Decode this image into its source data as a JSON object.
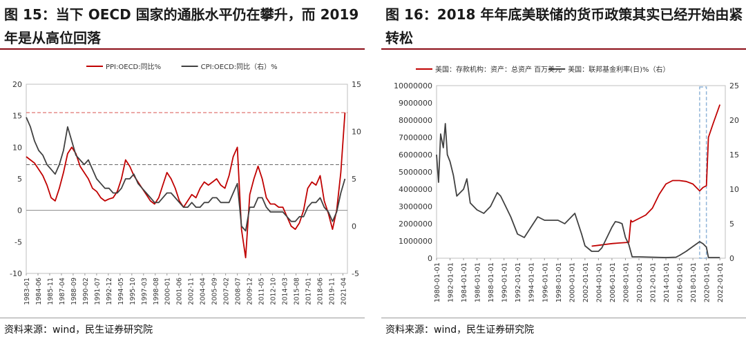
{
  "left": {
    "title": "图 15：当下 OECD 国家的通胀水平仍在攀升，而 2019 年是从高位回落",
    "source": "资料来源：wind，民生证券研究院",
    "chart_data": {
      "type": "line",
      "legend_position": "top",
      "x_ticks": [
        "1983-01",
        "1984-06",
        "1985-11",
        "1987-04",
        "1988-09",
        "1990-02",
        "1991-07",
        "1992-12",
        "1994-05",
        "1995-10",
        "1997-03",
        "1998-08",
        "2000-01",
        "2001-06",
        "2002-11",
        "2004-04",
        "2005-09",
        "2007-02",
        "2008-07",
        "2009-12",
        "2011-05",
        "2012-10",
        "2014-03",
        "2015-08",
        "2017-01",
        "2018-06",
        "2019-11",
        "2021-04"
      ],
      "y_left_ticks": [
        "20",
        "15",
        "10",
        "5",
        "0",
        "-5",
        "-10"
      ],
      "y_right_ticks": [
        "15",
        "10",
        "5",
        "0",
        "-5"
      ],
      "ylim_left": [
        -10,
        20
      ],
      "ylim_right": [
        -5,
        15
      ],
      "reference_lines": [
        {
          "axis": "left",
          "value": 15.5,
          "color": "#d9534f"
        },
        {
          "axis": "right",
          "value": 6.5,
          "color": "#666666"
        }
      ],
      "series": [
        {
          "name": "PPI:OECD:同比%",
          "axis": "left",
          "color": "#c00000",
          "x": [
            1983.0,
            1983.5,
            1984.0,
            1984.5,
            1985.0,
            1985.5,
            1986.0,
            1986.5,
            1987.0,
            1987.5,
            1988.0,
            1988.5,
            1989.0,
            1989.5,
            1990.0,
            1990.5,
            1991.0,
            1991.5,
            1992.0,
            1992.5,
            1993.0,
            1993.5,
            1994.0,
            1994.5,
            1995.0,
            1995.5,
            1996.0,
            1996.5,
            1997.0,
            1997.5,
            1998.0,
            1998.5,
            1999.0,
            1999.5,
            2000.0,
            2000.5,
            2001.0,
            2001.5,
            2002.0,
            2002.5,
            2003.0,
            2003.5,
            2004.0,
            2004.5,
            2005.0,
            2005.5,
            2006.0,
            2006.5,
            2007.0,
            2007.5,
            2008.0,
            2008.5,
            2009.0,
            2009.5,
            2010.0,
            2010.5,
            2011.0,
            2011.5,
            2012.0,
            2012.5,
            2013.0,
            2013.5,
            2014.0,
            2014.5,
            2015.0,
            2015.5,
            2016.0,
            2016.5,
            2017.0,
            2017.5,
            2018.0,
            2018.5,
            2019.0,
            2019.5,
            2020.0,
            2020.5,
            2021.0,
            2021.5
          ],
          "y": [
            8.5,
            8.0,
            7.5,
            6.5,
            5.5,
            4.0,
            2.0,
            1.5,
            3.5,
            6.0,
            9.0,
            10.0,
            9.0,
            7.0,
            6.0,
            5.0,
            3.5,
            3.0,
            2.0,
            1.5,
            1.8,
            2.0,
            3.0,
            5.0,
            8.0,
            7.0,
            5.5,
            4.5,
            3.5,
            2.5,
            1.5,
            1.0,
            2.0,
            4.0,
            6.0,
            5.0,
            3.5,
            1.5,
            0.5,
            1.5,
            2.5,
            2.0,
            3.5,
            4.5,
            4.0,
            4.5,
            5.0,
            4.0,
            3.5,
            5.5,
            8.5,
            10.0,
            -3.0,
            -7.5,
            2.5,
            5.0,
            7.0,
            5.0,
            2.0,
            1.0,
            1.0,
            0.5,
            0.5,
            -1.0,
            -2.5,
            -3.0,
            -2.0,
            0.0,
            3.5,
            4.5,
            4.0,
            5.5,
            1.5,
            -0.5,
            -3.0,
            0.0,
            6.0,
            15.5
          ]
        },
        {
          "name": "CPI:OECD:同比（右）%",
          "axis": "right",
          "color": "#404040",
          "x": [
            1983.0,
            1983.5,
            1984.0,
            1984.5,
            1985.0,
            1985.5,
            1986.0,
            1986.5,
            1987.0,
            1987.5,
            1988.0,
            1988.5,
            1989.0,
            1989.5,
            1990.0,
            1990.5,
            1991.0,
            1991.5,
            1992.0,
            1992.5,
            1993.0,
            1993.5,
            1994.0,
            1994.5,
            1995.0,
            1995.5,
            1996.0,
            1996.5,
            1997.0,
            1997.5,
            1998.0,
            1998.5,
            1999.0,
            1999.5,
            2000.0,
            2000.5,
            2001.0,
            2001.5,
            2002.0,
            2002.5,
            2003.0,
            2003.5,
            2004.0,
            2004.5,
            2005.0,
            2005.5,
            2006.0,
            2006.5,
            2007.0,
            2007.5,
            2008.0,
            2008.5,
            2009.0,
            2009.5,
            2010.0,
            2010.5,
            2011.0,
            2011.5,
            2012.0,
            2012.5,
            2013.0,
            2013.5,
            2014.0,
            2014.5,
            2015.0,
            2015.5,
            2016.0,
            2016.5,
            2017.0,
            2017.5,
            2018.0,
            2018.5,
            2019.0,
            2019.5,
            2020.0,
            2020.5,
            2021.0,
            2021.5
          ],
          "y": [
            11.5,
            10.5,
            9.0,
            8.0,
            7.5,
            6.5,
            6.0,
            5.5,
            6.5,
            8.0,
            10.5,
            9.0,
            7.5,
            7.0,
            6.5,
            7.0,
            6.0,
            5.0,
            4.5,
            4.0,
            4.0,
            3.5,
            3.5,
            4.0,
            5.0,
            5.0,
            5.5,
            4.5,
            4.0,
            3.5,
            3.0,
            2.5,
            2.5,
            3.0,
            3.5,
            3.5,
            3.0,
            2.5,
            2.0,
            2.0,
            2.5,
            2.0,
            2.0,
            2.5,
            2.5,
            3.0,
            3.0,
            2.5,
            2.5,
            2.5,
            3.5,
            4.5,
            0.0,
            -0.5,
            2.0,
            2.0,
            3.0,
            3.0,
            2.0,
            1.5,
            1.5,
            1.5,
            1.5,
            1.0,
            0.5,
            0.5,
            1.0,
            1.0,
            2.0,
            2.5,
            2.5,
            3.0,
            2.0,
            1.5,
            0.5,
            1.5,
            3.5,
            5.0
          ]
        }
      ]
    }
  },
  "right": {
    "title": "图 16：2018 年年底美联储的货币政策其实已经开始由紧转松",
    "source": "资料来源：wind，民生证券研究院",
    "chart_data": {
      "type": "line",
      "legend_position": "top",
      "x_ticks": [
        "1980-01-01",
        "1982-01-01",
        "1984-01-01",
        "1986-01-01",
        "1988-01-01",
        "1990-01-01",
        "1992-01-01",
        "1994-01-01",
        "1996-01-01",
        "1998-01-01",
        "2000-01-01",
        "2002-01-01",
        "2004-01-01",
        "2006-01-01",
        "2008-01-01",
        "2010-01-01",
        "2012-01-01",
        "2014-01-01",
        "2016-01-01",
        "2018-01-01",
        "2020-01-01",
        "2022-01-01"
      ],
      "y_left_ticks": [
        "10000000",
        "9000000",
        "8000000",
        "7000000",
        "6000000",
        "5000000",
        "4000000",
        "3000000",
        "2000000",
        "1000000",
        "0"
      ],
      "y_right_ticks": [
        "25",
        "20",
        "15",
        "10",
        "5",
        "0"
      ],
      "ylim_left": [
        0,
        10000000
      ],
      "ylim_right": [
        0,
        25
      ],
      "highlight_box": {
        "from": "2019-01-01",
        "to": "2020-01-01",
        "color": "#8fb4d8"
      },
      "series": [
        {
          "name": "美国：存款机构：资产：总资产 百万美元",
          "axis": "left",
          "color": "#c00000",
          "x": [
            2003.0,
            2004.0,
            2005.0,
            2006.0,
            2007.0,
            2008.5,
            2008.8,
            2009.0,
            2010.0,
            2011.0,
            2012.0,
            2013.0,
            2014.0,
            2015.0,
            2016.0,
            2017.0,
            2018.0,
            2019.0,
            2019.5,
            2020.0,
            2020.3,
            2021.0,
            2022.0
          ],
          "y": [
            700000,
            750000,
            800000,
            850000,
            880000,
            920000,
            2200000,
            2100000,
            2300000,
            2500000,
            2900000,
            3700000,
            4300000,
            4500000,
            4500000,
            4450000,
            4300000,
            3900000,
            4100000,
            4200000,
            7000000,
            7800000,
            8900000
          ]
        },
        {
          "name": "美国：联邦基金利率(日)%（右）",
          "axis": "right",
          "color": "#404040",
          "x": [
            1980.0,
            1980.3,
            1980.6,
            1981.0,
            1981.3,
            1981.6,
            1982.0,
            1982.5,
            1983.0,
            1984.0,
            1984.5,
            1985.0,
            1986.0,
            1987.0,
            1988.0,
            1989.0,
            1989.5,
            1990.0,
            1991.0,
            1992.0,
            1993.0,
            1994.0,
            1995.0,
            1996.0,
            1997.0,
            1998.0,
            1999.0,
            2000.0,
            2000.5,
            2001.0,
            2001.5,
            2002.0,
            2003.0,
            2004.0,
            2004.5,
            2005.0,
            2006.0,
            2006.5,
            2007.0,
            2007.5,
            2008.0,
            2008.5,
            2009.0,
            2010.0,
            2012.0,
            2014.0,
            2015.5,
            2016.0,
            2017.0,
            2018.0,
            2019.0,
            2019.5,
            2020.0,
            2020.3,
            2021.0,
            2022.0
          ],
          "y": [
            15.0,
            11.0,
            18.0,
            16.0,
            19.5,
            15.0,
            14.0,
            12.0,
            9.0,
            10.0,
            11.5,
            8.0,
            7.0,
            6.5,
            7.5,
            9.5,
            9.0,
            8.0,
            6.0,
            3.5,
            3.0,
            4.5,
            6.0,
            5.5,
            5.5,
            5.5,
            5.0,
            6.0,
            6.5,
            5.0,
            3.5,
            1.8,
            1.0,
            1.0,
            1.5,
            2.5,
            4.5,
            5.3,
            5.2,
            5.0,
            3.0,
            2.0,
            0.2,
            0.2,
            0.15,
            0.1,
            0.15,
            0.4,
            1.0,
            1.7,
            2.4,
            2.1,
            1.6,
            0.1,
            0.1,
            0.1
          ]
        }
      ]
    }
  }
}
